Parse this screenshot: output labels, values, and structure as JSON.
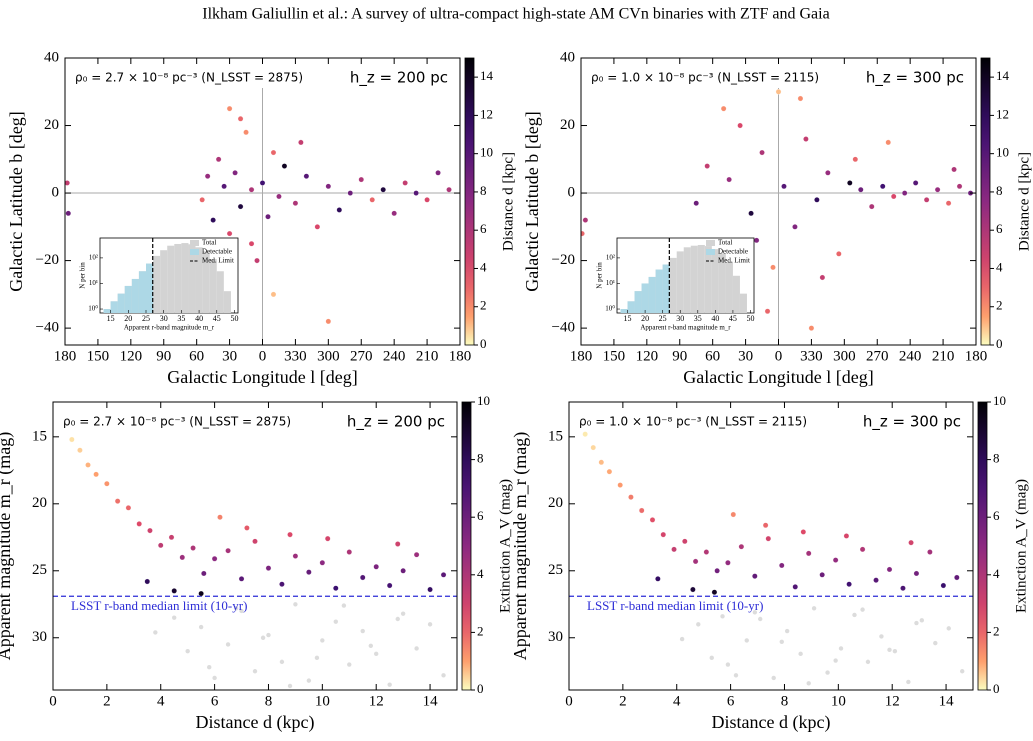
{
  "header": {
    "title": "Ilkham Galiullin et al.: A survey of ultra-compact high-state AM CVn binaries with ZTF and Gaia"
  },
  "chart_data": [
    {
      "type": "scatter",
      "annotation_left": "ρ₀ = 2.7 × 10⁻⁸ pc⁻³ (N_LSST = 2875)",
      "annotation_right": "h_z = 200 pc",
      "xlabel": "Galactic Longitude l [deg]",
      "ylabel": "Galactic Latitude b [deg]",
      "xlim": [
        180,
        -180
      ],
      "xticks": [
        180,
        150,
        120,
        90,
        60,
        30,
        0,
        {
          "value": -30,
          "label": "330"
        },
        {
          "value": -60,
          "label": "300"
        },
        {
          "value": -90,
          "label": "270"
        },
        {
          "value": -120,
          "label": "240"
        },
        {
          "value": -150,
          "label": "210"
        },
        {
          "value": -180,
          "label": "180"
        }
      ],
      "ylim": [
        -45,
        40
      ],
      "yticks": [
        {
          "value": -40,
          "label": "−40"
        },
        {
          "value": -20,
          "label": "−20"
        },
        0,
        20,
        40
      ],
      "ref_x": 0,
      "ref_y": 0,
      "clim": [
        0,
        15
      ],
      "cticks": [
        0,
        2,
        4,
        6,
        8,
        10,
        12,
        14
      ],
      "colorbar_label": "Distance d [kpc]",
      "colormap": "magma_r",
      "points": {
        "x": [
          178,
          177,
          55,
          50,
          45,
          40,
          35,
          30,
          25,
          20,
          15,
          10,
          5,
          0,
          -5,
          -10,
          -15,
          -20,
          -30,
          -40,
          -50,
          -60,
          -70,
          -80,
          -90,
          -100,
          -110,
          -120,
          -130,
          -140,
          -150,
          -160,
          -170,
          40,
          20,
          -10,
          -35,
          -60,
          10,
          30
        ],
        "y": [
          3,
          -6,
          -2,
          5,
          -8,
          10,
          2,
          -12,
          6,
          -4,
          18,
          1,
          -20,
          3,
          -7,
          12,
          -1,
          8,
          -3,
          5,
          -10,
          2,
          -5,
          0,
          4,
          -2,
          1,
          -6,
          3,
          0,
          -2,
          6,
          1,
          -25,
          22,
          -30,
          15,
          -38,
          -15,
          25
        ],
        "c": [
          5,
          9,
          3,
          7,
          12,
          6,
          10,
          4,
          8,
          13,
          2,
          6,
          5,
          11,
          9,
          3,
          7,
          14,
          6,
          10,
          4,
          8,
          12,
          9,
          6,
          3,
          13,
          7,
          5,
          10,
          4,
          8,
          6,
          2,
          3,
          1,
          5,
          2,
          4,
          2
        ]
      },
      "inset": {
        "type": "histogram",
        "xlabel": "Apparent r-band magnitude m_r",
        "ylabel": "N per bin",
        "bins": [
          13,
          15,
          17,
          19,
          21,
          23,
          25,
          27,
          29,
          31,
          33,
          35,
          37,
          39,
          41,
          43,
          45,
          47,
          49
        ],
        "series": [
          {
            "name": "Total",
            "color": "#d3d3d3",
            "values": [
              1,
              2,
              4,
              8,
              15,
              30,
              60,
              120,
              200,
              300,
              350,
              380,
              340,
              260,
              180,
              90,
              30,
              5
            ]
          },
          {
            "name": "Detectable",
            "color": "#add8e6",
            "values": [
              1,
              2,
              4,
              8,
              15,
              30,
              60,
              null,
              null,
              null,
              null,
              null,
              null,
              null,
              null,
              null,
              null,
              null
            ]
          }
        ],
        "limit_name": "Med. Limit",
        "limit": 26.9,
        "xlim": [
          12,
          51
        ],
        "xticks": [
          15,
          20,
          25,
          30,
          35,
          40,
          45,
          50
        ],
        "ylim": [
          0.7,
          600
        ],
        "log_y": true,
        "yticks": [
          {
            "value": 1,
            "label": "10⁰"
          },
          {
            "value": 10,
            "label": "10¹"
          },
          {
            "value": 100,
            "label": "10²"
          }
        ]
      }
    },
    {
      "type": "scatter",
      "annotation_left": "ρ₀ = 1.0 × 10⁻⁸ pc⁻³ (N_LSST = 2115)",
      "annotation_right": "h_z = 300 pc",
      "xlabel": "Galactic Longitude l [deg]",
      "ylabel": "Galactic Latitude b [deg]",
      "xlim": [
        180,
        -180
      ],
      "xticks": [
        180,
        150,
        120,
        90,
        60,
        30,
        0,
        {
          "value": -30,
          "label": "330"
        },
        {
          "value": -60,
          "label": "300"
        },
        {
          "value": -90,
          "label": "270"
        },
        {
          "value": -120,
          "label": "240"
        },
        {
          "value": -150,
          "label": "210"
        },
        {
          "value": -180,
          "label": "180"
        }
      ],
      "ylim": [
        -45,
        40
      ],
      "yticks": [
        {
          "value": -40,
          "label": "−40"
        },
        {
          "value": -20,
          "label": "−20"
        },
        0,
        20,
        40
      ],
      "ref_x": 0,
      "ref_y": 0,
      "clim": [
        0,
        15
      ],
      "cticks": [
        0,
        2,
        4,
        6,
        8,
        10,
        12,
        14
      ],
      "colorbar_label": "Distance d [kpc]",
      "colormap": "magma_r",
      "points": {
        "x": [
          176,
          179,
          75,
          65,
          55,
          45,
          35,
          25,
          15,
          5,
          -5,
          -15,
          -25,
          -35,
          -45,
          -55,
          -65,
          -75,
          -85,
          -95,
          -105,
          -115,
          -125,
          -135,
          -145,
          -155,
          -165,
          -175,
          50,
          30,
          10,
          -20,
          -40,
          -70,
          60,
          0,
          -30,
          20,
          -100,
          -160
        ],
        "y": [
          -8,
          -12,
          -3,
          8,
          -15,
          4,
          20,
          -6,
          12,
          -22,
          2,
          -10,
          16,
          -2,
          6,
          -18,
          3,
          1,
          -4,
          2,
          -1,
          0,
          3,
          -2,
          1,
          -3,
          2,
          0,
          25,
          -30,
          -35,
          28,
          -25,
          10,
          -20,
          30,
          -40,
          -14,
          15,
          7
        ],
        "c": [
          6,
          3,
          9,
          5,
          11,
          7,
          4,
          13,
          6,
          2,
          10,
          8,
          5,
          12,
          7,
          3,
          14,
          9,
          6,
          11,
          4,
          8,
          10,
          5,
          7,
          3,
          6,
          9,
          2,
          4,
          3,
          2,
          5,
          3,
          4,
          1,
          2,
          8,
          2,
          6
        ]
      },
      "inset": {
        "type": "histogram",
        "xlabel": "Apparent r-band magnitude m_r",
        "ylabel": "N per bin",
        "bins": [
          13,
          15,
          17,
          19,
          21,
          23,
          25,
          27,
          29,
          31,
          33,
          35,
          37,
          39,
          41,
          43,
          45,
          47,
          49
        ],
        "series": [
          {
            "name": "Total",
            "color": "#d3d3d3",
            "values": [
              1,
              2,
              5,
              10,
              18,
              35,
              55,
              100,
              180,
              260,
              300,
              320,
              290,
              220,
              150,
              70,
              20,
              4
            ]
          },
          {
            "name": "Detectable",
            "color": "#add8e6",
            "values": [
              1,
              2,
              5,
              10,
              18,
              35,
              55,
              null,
              null,
              null,
              null,
              null,
              null,
              null,
              null,
              null,
              null,
              null
            ]
          }
        ],
        "limit_name": "Med. Limit",
        "limit": 26.9,
        "xlim": [
          12,
          51
        ],
        "xticks": [
          15,
          20,
          25,
          30,
          35,
          40,
          45,
          50
        ],
        "ylim": [
          0.7,
          600
        ],
        "log_y": true,
        "yticks": [
          {
            "value": 1,
            "label": "10⁰"
          },
          {
            "value": 10,
            "label": "10¹"
          },
          {
            "value": 100,
            "label": "10²"
          }
        ]
      }
    },
    {
      "type": "scatter",
      "annotation_left": "ρ₀ = 2.7 × 10⁻⁸ pc⁻³ (N_LSST = 2875)",
      "annotation_right": "h_z = 200 pc",
      "xlabel": "Distance d (kpc)",
      "ylabel": "Apparent magnitude m_r (mag)",
      "xlim": [
        0,
        15
      ],
      "xticks": [
        0,
        2,
        4,
        6,
        8,
        10,
        12,
        14
      ],
      "ylim": [
        33.9,
        12.4
      ],
      "yticks": [
        15,
        20,
        25,
        30
      ],
      "limit": 26.9,
      "limit_label": "LSST r-band median limit (10-yr)",
      "limit_color": "#2b2bd6",
      "clim": [
        0,
        10
      ],
      "cticks": [
        0,
        2,
        4,
        6,
        8,
        10
      ],
      "colorbar_label": "Extinction A_V (mag)",
      "colormap": "magma_r",
      "faint_points": {
        "color": "#9a9a9a",
        "x": [
          4.5,
          5.0,
          5.5,
          6.0,
          6.5,
          7.0,
          7.5,
          8.0,
          8.5,
          9.0,
          9.5,
          10.0,
          10.5,
          11.0,
          11.5,
          12.0,
          12.5,
          13.0,
          13.5,
          14.0,
          14.5,
          6.8,
          7.8,
          8.8,
          9.8,
          10.8,
          5.8,
          11.8,
          12.8,
          3.8
        ],
        "y": [
          28.5,
          31.0,
          29.2,
          33.0,
          30.5,
          28.0,
          32.5,
          29.8,
          31.8,
          27.5,
          33.2,
          30.2,
          28.8,
          32.0,
          29.5,
          31.2,
          33.5,
          28.2,
          30.8,
          29.0,
          32.8,
          27.8,
          30.0,
          33.6,
          31.5,
          27.6,
          32.2,
          30.6,
          28.6,
          29.6
        ]
      },
      "points": {
        "x": [
          0.7,
          1.0,
          1.3,
          1.6,
          2.0,
          2.4,
          2.8,
          3.2,
          3.6,
          4.0,
          4.4,
          4.8,
          5.2,
          5.6,
          6.0,
          6.5,
          7.0,
          7.5,
          8.0,
          8.5,
          9.0,
          9.5,
          10.0,
          10.5,
          11.0,
          11.5,
          12.0,
          12.5,
          13.0,
          13.5,
          14.0,
          14.5,
          3.5,
          4.5,
          5.5,
          6.2,
          7.2,
          8.8,
          10.2,
          12.8
        ],
        "y": [
          15.2,
          16.0,
          17.1,
          17.8,
          18.5,
          19.8,
          20.3,
          21.5,
          22.0,
          23.1,
          22.5,
          24.0,
          23.3,
          25.2,
          24.1,
          23.5,
          25.6,
          22.8,
          24.8,
          26.0,
          23.9,
          25.1,
          24.4,
          26.3,
          23.6,
          25.5,
          24.7,
          26.1,
          25.0,
          23.8,
          26.4,
          25.3,
          25.8,
          26.5,
          26.7,
          21.0,
          21.8,
          22.3,
          22.6,
          23.0
        ],
        "c": [
          0.3,
          0.5,
          0.8,
          1.0,
          1.2,
          1.8,
          2.0,
          2.5,
          3.0,
          3.5,
          3.2,
          4.5,
          4.0,
          6.0,
          5.0,
          4.2,
          6.5,
          3.0,
          5.5,
          7.0,
          4.5,
          6.2,
          5.0,
          7.5,
          4.0,
          6.8,
          5.5,
          7.2,
          6.0,
          4.5,
          7.8,
          6.5,
          8.0,
          9.0,
          9.5,
          1.5,
          2.2,
          2.6,
          2.8,
          3.0
        ]
      }
    },
    {
      "type": "scatter",
      "annotation_left": "ρ₀ = 1.0 × 10⁻⁸ pc⁻³ (N_LSST = 2115)",
      "annotation_right": "h_z = 300 pc",
      "xlabel": "Distance d (kpc)",
      "ylabel": "Apparent magnitude m_r (mag)",
      "xlim": [
        0,
        15
      ],
      "xticks": [
        0,
        2,
        4,
        6,
        8,
        10,
        12,
        14
      ],
      "ylim": [
        33.9,
        12.4
      ],
      "yticks": [
        15,
        20,
        25,
        30
      ],
      "limit": 26.9,
      "limit_label": "LSST r-band median limit (10-yr)",
      "limit_color": "#2b2bd6",
      "clim": [
        0,
        10
      ],
      "cticks": [
        0,
        2,
        4,
        6,
        8,
        10
      ],
      "colorbar_label": "Extinction A_V (mag)",
      "colormap": "magma_r",
      "faint_points": {
        "color": "#9a9a9a",
        "x": [
          4.8,
          5.3,
          5.7,
          6.2,
          6.6,
          7.1,
          7.6,
          8.1,
          8.6,
          9.1,
          9.6,
          10.1,
          10.6,
          11.1,
          11.6,
          12.1,
          12.6,
          13.1,
          13.6,
          14.1,
          14.6,
          6.9,
          7.9,
          8.9,
          9.9,
          10.9,
          5.9,
          11.9,
          12.9,
          4.2
        ],
        "y": [
          29.0,
          31.5,
          28.4,
          32.8,
          30.2,
          28.6,
          33.0,
          29.5,
          31.2,
          27.8,
          32.6,
          30.8,
          28.3,
          31.8,
          29.9,
          31.0,
          33.3,
          28.7,
          30.4,
          29.3,
          32.5,
          28.1,
          30.3,
          33.4,
          31.7,
          27.9,
          32.0,
          30.9,
          28.9,
          30.1
        ]
      },
      "points": {
        "x": [
          0.6,
          0.9,
          1.2,
          1.5,
          1.9,
          2.3,
          2.7,
          3.1,
          3.5,
          3.9,
          4.3,
          4.7,
          5.1,
          5.5,
          5.9,
          6.4,
          6.9,
          7.4,
          7.9,
          8.4,
          8.9,
          9.4,
          9.9,
          10.4,
          10.9,
          11.4,
          11.9,
          12.4,
          12.9,
          13.4,
          13.9,
          14.4,
          3.3,
          4.6,
          5.4,
          6.1,
          7.3,
          8.7,
          10.3,
          12.7
        ],
        "y": [
          14.8,
          15.8,
          16.9,
          17.6,
          18.6,
          19.5,
          20.5,
          21.2,
          22.3,
          23.4,
          22.8,
          24.3,
          23.6,
          25.0,
          24.4,
          23.2,
          25.4,
          22.6,
          24.6,
          26.2,
          23.7,
          25.3,
          24.2,
          26.0,
          23.4,
          25.7,
          24.9,
          26.3,
          25.2,
          23.6,
          26.1,
          25.5,
          25.6,
          26.4,
          26.6,
          20.8,
          21.6,
          22.1,
          22.4,
          22.9
        ],
        "c": [
          0.2,
          0.4,
          0.7,
          0.9,
          1.1,
          1.6,
          1.9,
          2.4,
          2.8,
          3.3,
          3.0,
          4.3,
          3.8,
          5.8,
          4.8,
          4.0,
          6.3,
          2.9,
          5.3,
          6.8,
          4.3,
          6.0,
          4.8,
          7.3,
          3.9,
          6.6,
          5.3,
          7.0,
          5.8,
          4.3,
          7.6,
          6.3,
          7.8,
          8.8,
          9.3,
          1.4,
          2.0,
          2.5,
          2.7,
          2.9
        ]
      }
    }
  ]
}
